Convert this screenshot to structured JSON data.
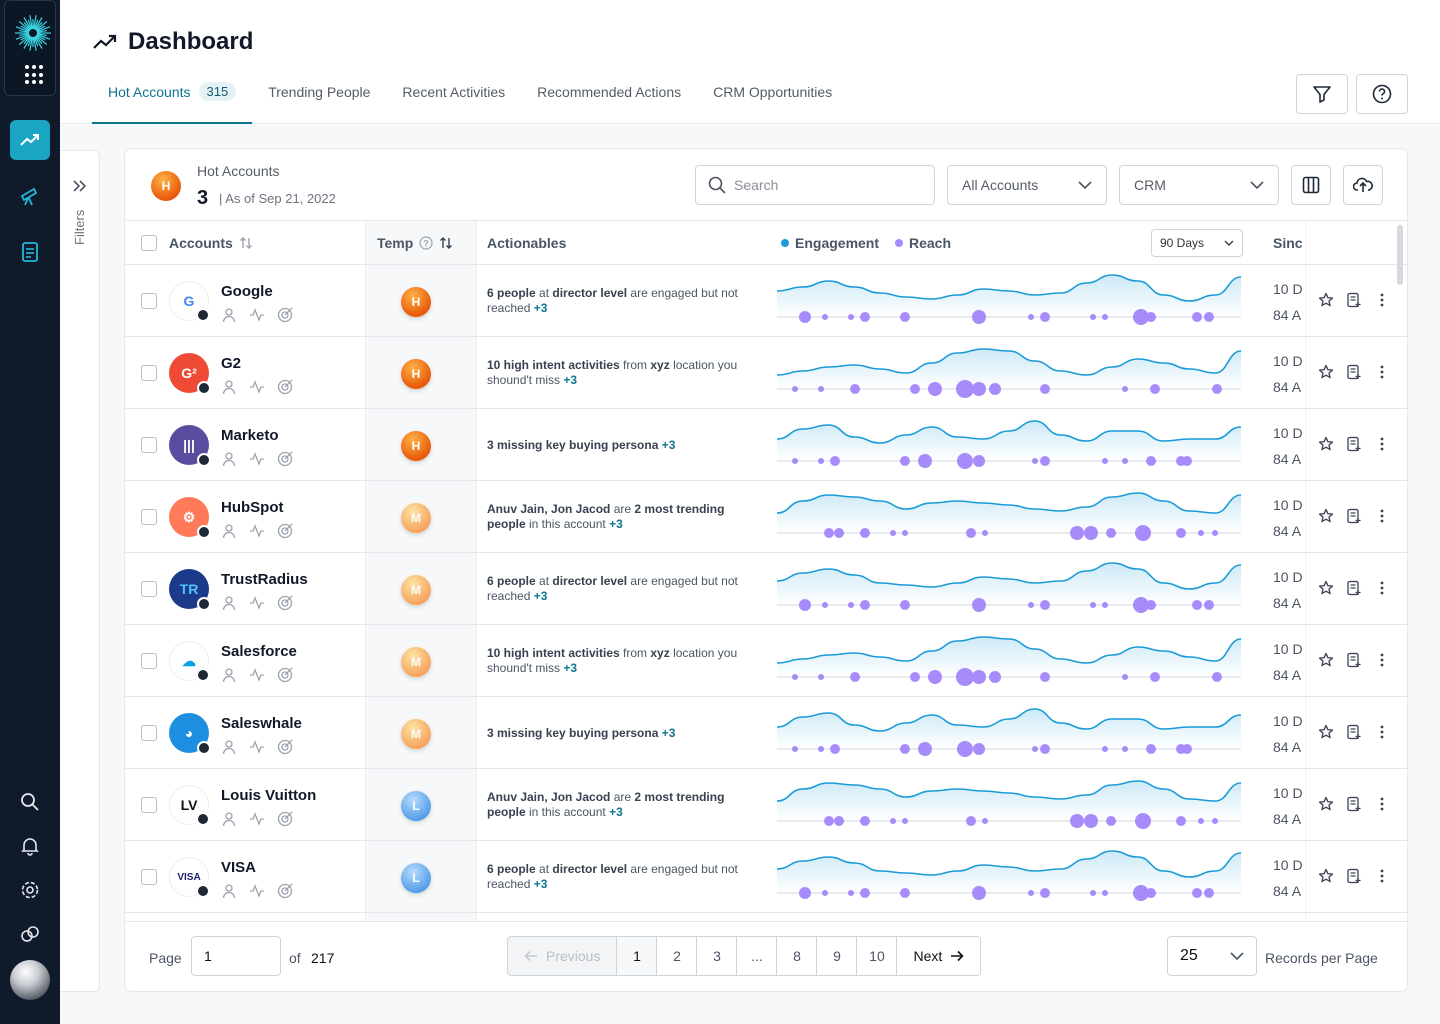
{
  "header": {
    "title": "Dashboard",
    "tabs": [
      {
        "label": "Hot Accounts",
        "count": "315"
      },
      {
        "label": "Trending People"
      },
      {
        "label": "Recent Activities"
      },
      {
        "label": "Recommended Actions"
      },
      {
        "label": "CRM Opportunities"
      }
    ]
  },
  "filters": {
    "label": "Filters"
  },
  "summary": {
    "badge": "H",
    "title": "Hot Accounts",
    "count": "3",
    "date": "| As of Sep 21, 2022"
  },
  "toolbar": {
    "search_placeholder": "Search",
    "accounts_select": "All Accounts",
    "crm_select": "CRM"
  },
  "table": {
    "headers": {
      "accounts": "Accounts",
      "temp": "Temp",
      "actionables": "Actionables",
      "engagement": "Engagement",
      "reach": "Reach",
      "days": "90 Days",
      "since": "Since"
    },
    "rows": [
      {
        "name": "Google",
        "temp": "H",
        "since1": "10 D",
        "since2": "84 A",
        "action": {
          "pre": "",
          "b1": "6 people",
          "mid": " at ",
          "b2": "director level",
          "post": " are engaged but not reached ",
          "plus": "+3"
        }
      },
      {
        "name": "G2",
        "temp": "H",
        "since1": "10 D",
        "since2": "84 A",
        "action": {
          "pre": "",
          "b1": "10 high intent activities",
          "mid": " from ",
          "b2": "xyz",
          "post": " location you shound't miss ",
          "plus": "+3"
        }
      },
      {
        "name": "Marketo",
        "temp": "H",
        "since1": "10 D",
        "since2": "84 A",
        "action": {
          "pre": "",
          "b1": "3 missing key buying persona",
          "mid": "",
          "b2": "",
          "post": " ",
          "plus": "+3"
        }
      },
      {
        "name": "HubSpot",
        "temp": "M",
        "since1": "10 D",
        "since2": "84 A",
        "action": {
          "pre": "",
          "b1": "Anuv Jain, Jon Jacod",
          "mid": " are ",
          "b2": "2 most trending people",
          "post": " in this account ",
          "plus": "+3"
        }
      },
      {
        "name": "TrustRadius",
        "temp": "M",
        "since1": "10 D",
        "since2": "84 A",
        "action": {
          "pre": "",
          "b1": "6 people",
          "mid": " at ",
          "b2": "director level",
          "post": " are engaged but not reached ",
          "plus": "+3"
        }
      },
      {
        "name": "Salesforce",
        "temp": "M",
        "since1": "10 D",
        "since2": "84 A",
        "action": {
          "pre": "",
          "b1": "10 high intent activities",
          "mid": " from ",
          "b2": "xyz",
          "post": " location you shound't miss ",
          "plus": "+3"
        }
      },
      {
        "name": "Saleswhale",
        "temp": "M",
        "since1": "10 D",
        "since2": "84 A",
        "action": {
          "pre": "",
          "b1": "3 missing key buying persona",
          "mid": "",
          "b2": "",
          "post": " ",
          "plus": "+3"
        }
      },
      {
        "name": "Louis Vuitton",
        "temp": "L",
        "since1": "10 D",
        "since2": "84 A",
        "action": {
          "pre": "",
          "b1": "Anuv Jain, Jon Jacod",
          "mid": " are ",
          "b2": "2 most trending people",
          "post": " in this account ",
          "plus": "+3"
        }
      },
      {
        "name": "VISA",
        "temp": "L",
        "since1": "10 D",
        "since2": "84 A",
        "action": {
          "pre": "",
          "b1": "6 people",
          "mid": " at ",
          "b2": "director level",
          "post": " are engaged but not reached ",
          "plus": "+3"
        }
      }
    ]
  },
  "pagination": {
    "page_label": "Page",
    "page_value": "1",
    "of_label": "of",
    "total_pages": "217",
    "previous": "Previous",
    "pages": [
      "1",
      "2",
      "3",
      "...",
      "8",
      "9",
      "10"
    ],
    "next": "Next",
    "records_value": "25",
    "records_label": "Records per Page"
  },
  "colors": {
    "accent": "#0e7490",
    "rail_bg": "#0f1b2b",
    "rail_active": "#1aa6c2",
    "engagement": "#1a9bd7",
    "reach": "#a78bfa"
  },
  "icons": [
    "trend-icon",
    "telescope-icon",
    "document-icon",
    "search-icon",
    "bell-icon",
    "gear-icon",
    "link-icon",
    "filter-icon",
    "help-icon",
    "columns-icon",
    "upload-icon",
    "star-icon",
    "note-icon",
    "more-icon"
  ]
}
